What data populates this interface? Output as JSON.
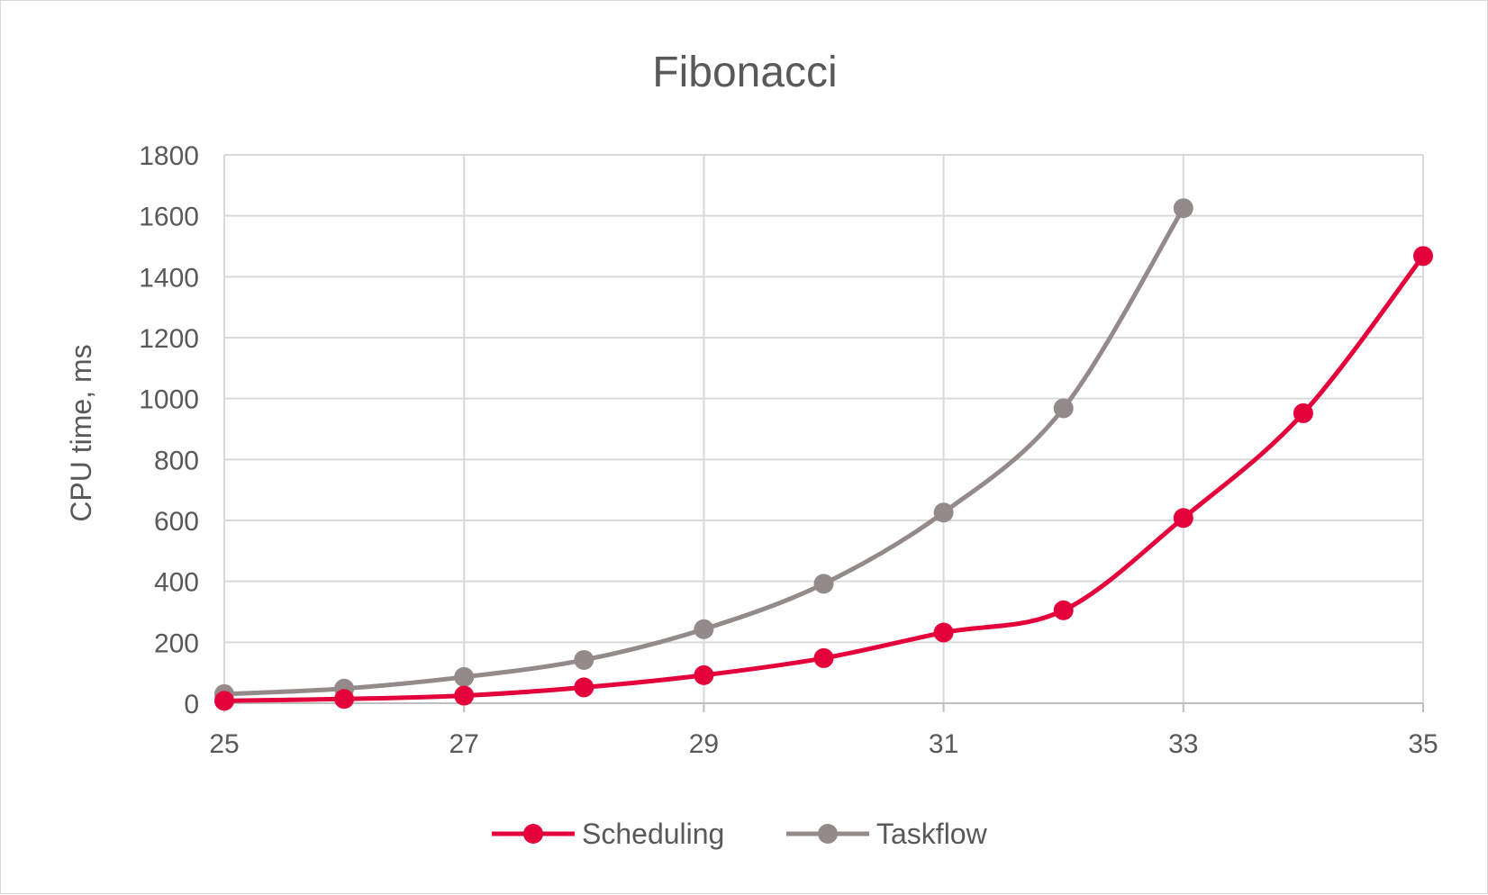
{
  "chart_data": {
    "type": "line",
    "title": "Fibonacci",
    "xlabel": "",
    "ylabel": "CPU time, ms",
    "x_ticks": [
      "25",
      "27",
      "29",
      "31",
      "33",
      "35"
    ],
    "y_ticks": [
      "0",
      "200",
      "400",
      "600",
      "800",
      "1000",
      "1200",
      "1400",
      "1600",
      "1800"
    ],
    "xlim": [
      25,
      35
    ],
    "ylim": [
      0,
      1800
    ],
    "grid": true,
    "legend_position": "bottom",
    "smooth": true,
    "series": [
      {
        "name": "Scheduling",
        "color": "#e4003a",
        "x": [
          25,
          26,
          27,
          28,
          29,
          30,
          31,
          32,
          33,
          34,
          35
        ],
        "y": [
          8,
          14,
          25,
          52,
          92,
          148,
          232,
          305,
          608,
          952,
          1468
        ]
      },
      {
        "name": "Taskflow",
        "color": "#958a8a",
        "x": [
          25,
          26,
          27,
          28,
          29,
          30,
          31,
          32,
          33
        ],
        "y": [
          30,
          48,
          86,
          142,
          243,
          392,
          626,
          968,
          1625
        ]
      }
    ]
  }
}
